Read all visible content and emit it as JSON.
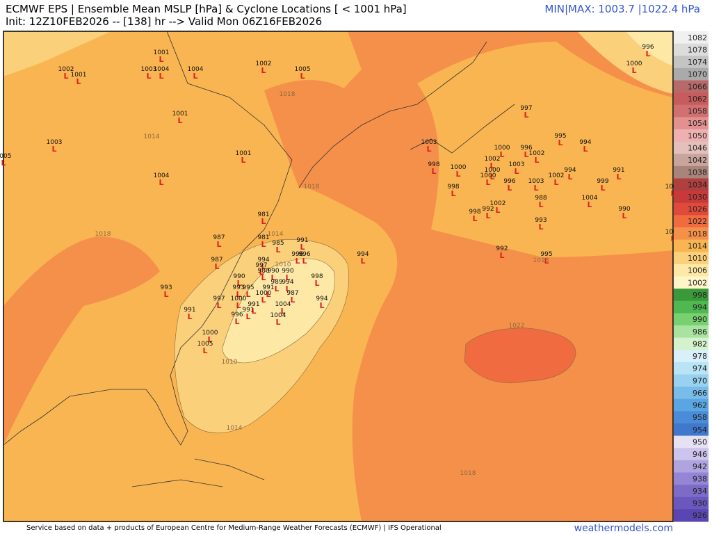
{
  "header": {
    "title": "ECMWF EPS | Ensemble Mean MSLP [hPa] & Cyclone Locations [ < 1001 hPa]",
    "subtitle": "Init: 12Z10FEB2026 -- [138] hr --> Valid Mon 06Z16FEB2026",
    "minmax": "MIN|MAX: 1003.7 |1022.4 hPa"
  },
  "footer": {
    "credit": "Service based on data + products of European Centre for Medium-Range Weather Forecasts (ECMWF) | IFS Operational",
    "site": "weathermodels.com"
  },
  "low_symbol": "L",
  "cyclones": [
    1001,
    1002,
    1001,
    1003,
    1004,
    1004,
    1002,
    1005,
    996,
    1000,
    1001,
    997,
    1003,
    1001,
    1003,
    995,
    994,
    1000,
    996,
    1002,
    1002,
    1003,
    998,
    1000,
    1004,
    1000,
    994,
    991,
    1000,
    996,
    1003,
    1002,
    999,
    1004,
    998,
    988,
    1004,
    1002,
    992,
    998,
    990,
    981,
    993,
    1003,
    987,
    981,
    985,
    991,
    992,
    995,
    994,
    996,
    996,
    987,
    994,
    997,
    980,
    990,
    990,
    990,
    998,
    989,
    994,
    993,
    995,
    991,
    987,
    993,
    1000,
    997,
    1000,
    994,
    991,
    1004,
    991,
    991,
    996,
    1004,
    1000,
    1005,
    1005
  ],
  "contour_labels": [
    1018,
    1014,
    1018,
    1018,
    1014,
    1010,
    1018,
    1022,
    1010,
    1014,
    1018
  ],
  "colorbar": {
    "labels": [
      1082,
      1078,
      1074,
      1070,
      1066,
      1062,
      1058,
      1054,
      1050,
      1046,
      1042,
      1038,
      1034,
      1030,
      1026,
      1022,
      1018,
      1014,
      1010,
      1006,
      1002,
      998,
      994,
      990,
      986,
      982,
      978,
      974,
      970,
      966,
      962,
      958,
      954,
      950,
      946,
      942,
      938,
      934,
      930,
      926
    ],
    "colors": [
      "#f0f0f0",
      "#dcdcdc",
      "#c4c4c4",
      "#aaaaaa",
      "#b86a6a",
      "#c85c5c",
      "#d07070",
      "#e29090",
      "#eeb0b0",
      "#e4c0bc",
      "#c8a49c",
      "#a8847a",
      "#b04040",
      "#c83a3a",
      "#e04a3a",
      "#f06b40",
      "#f5904a",
      "#f9b551",
      "#fbd07a",
      "#fde8a6",
      "#fef6c8",
      "#3a9a3a",
      "#50b850",
      "#78d070",
      "#a8e4a0",
      "#d4f2cc",
      "#d8f0fa",
      "#b8e4f6",
      "#98d2f0",
      "#78bcea",
      "#5aa6e2",
      "#4a8cd8",
      "#4078cc",
      "#e6e2f4",
      "#ccc4ec",
      "#b0a4e0",
      "#9486d4",
      "#7c6cc8",
      "#6a58be",
      "#5a46b2"
    ]
  }
}
